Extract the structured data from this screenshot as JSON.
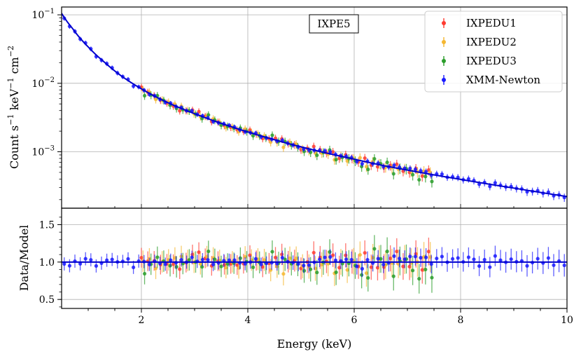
{
  "chart_data": [
    {
      "type": "scatter",
      "panel": "spectrum",
      "ylabel_parts": [
        "Count s",
        "−1",
        " keV",
        "−1",
        " cm",
        "−2"
      ],
      "yscale": "log",
      "xlim": [
        0.5,
        10
      ],
      "ylim": [
        0.00015,
        0.13
      ],
      "grid": true,
      "y_ticks": [
        {
          "value": 0.1,
          "base": "10",
          "exp": "−1"
        },
        {
          "value": 0.01,
          "base": "10",
          "exp": "−2"
        },
        {
          "value": 0.001,
          "base": "10",
          "exp": "−3"
        }
      ],
      "annotation": "IXPE5",
      "legend_position": "top-right",
      "model": {
        "color": "#0000cc",
        "x": [
          0.5,
          0.7,
          1.0,
          1.3,
          1.6,
          2.0,
          2.5,
          3.0,
          3.5,
          4.0,
          4.5,
          5.0,
          5.5,
          6.0,
          6.5,
          7.0,
          7.5,
          8.0,
          8.5,
          9.0,
          9.5,
          10.0
        ],
        "y": [
          0.105,
          0.064,
          0.034,
          0.0205,
          0.0132,
          0.0083,
          0.0052,
          0.0036,
          0.0026,
          0.00195,
          0.0015,
          0.00118,
          0.00095,
          0.00078,
          0.00064,
          0.00054,
          0.00046,
          0.000395,
          0.00034,
          0.000295,
          0.000255,
          0.000222
        ]
      },
      "series": [
        {
          "name": "IXPEDU1",
          "color": "#ff3b30",
          "x_range": [
            2.0,
            7.4
          ],
          "step": 0.12,
          "y_err_rel": 0.12,
          "scatter": 0.1
        },
        {
          "name": "IXPEDU2",
          "color": "#f5b731",
          "x_range": [
            2.0,
            7.4
          ],
          "step": 0.12,
          "y_err_rel": 0.13,
          "scatter": 0.12
        },
        {
          "name": "IXPEDU3",
          "color": "#2a9d2a",
          "x_range": [
            2.0,
            7.4
          ],
          "step": 0.12,
          "y_err_rel": 0.13,
          "scatter": 0.12
        },
        {
          "name": "XMM-Newton",
          "color": "#1a1aff",
          "x_range": [
            0.55,
            10.0
          ],
          "step": 0.1,
          "y_err_rel": 0.08,
          "scatter": 0.06
        }
      ]
    },
    {
      "type": "scatter",
      "panel": "ratio",
      "xlabel": "Energy (keV)",
      "ylabel": "Data/Model",
      "xlim": [
        0.5,
        10
      ],
      "ylim": [
        0.38,
        1.72
      ],
      "grid": true,
      "x_ticks": [
        "2",
        "4",
        "6",
        "8",
        "10"
      ],
      "y_ticks": [
        "0.5",
        "1.0",
        "1.5"
      ],
      "reference_line": 1.0
    }
  ]
}
